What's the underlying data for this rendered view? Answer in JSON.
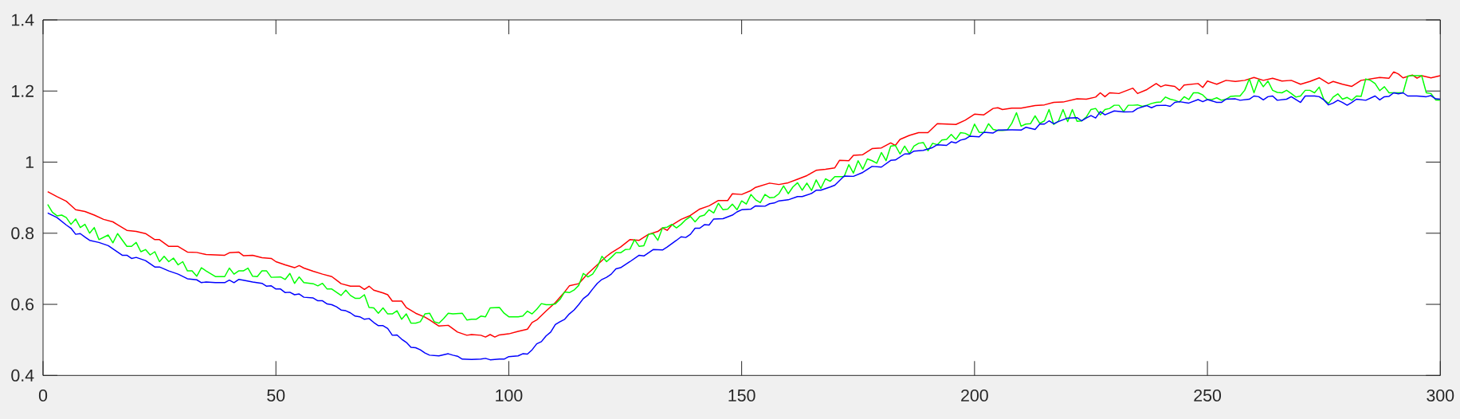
{
  "chart_data": {
    "type": "line",
    "xlim": [
      0,
      300
    ],
    "ylim": [
      0.4,
      1.4
    ],
    "xticks": [
      0,
      50,
      100,
      150,
      200,
      250,
      300
    ],
    "yticks": [
      0.4,
      0.6,
      0.8,
      1,
      1.2,
      1.4
    ],
    "series": [
      {
        "color": "#ff0000",
        "x": [
          1,
          3,
          5,
          7,
          9,
          11,
          13,
          15,
          16,
          18,
          20,
          22,
          24,
          25,
          27,
          29,
          31,
          33,
          35,
          37,
          39,
          40,
          42,
          43,
          45,
          47,
          49,
          50,
          52,
          54,
          55,
          56,
          58,
          60,
          62,
          63,
          64,
          66,
          68,
          69,
          70,
          71,
          73,
          74,
          75,
          77,
          78,
          80,
          82,
          83,
          85,
          87,
          89,
          91,
          92,
          94,
          95,
          96,
          97,
          98,
          100,
          102,
          104,
          105,
          106,
          108,
          110,
          112,
          113,
          115,
          117,
          119,
          121,
          122,
          124,
          126,
          128,
          130,
          132,
          133,
          134,
          135,
          137,
          139,
          141,
          143,
          145,
          147,
          148,
          150,
          152,
          153,
          156,
          158,
          160,
          162,
          164,
          166,
          168,
          170,
          171,
          173,
          174,
          176,
          178,
          180,
          182,
          183,
          184,
          186,
          188,
          190,
          192,
          194,
          196,
          198,
          200,
          202,
          204,
          205,
          206,
          208,
          210,
          213,
          215,
          217,
          219,
          221,
          222,
          224,
          226,
          227,
          228,
          229,
          231,
          234,
          235,
          237,
          239,
          240,
          241,
          243,
          244,
          245,
          248,
          249,
          250,
          252,
          254,
          256,
          258,
          260,
          262,
          264,
          266,
          268,
          270,
          272,
          274,
          276,
          277,
          279,
          281,
          283,
          285,
          287,
          289,
          290,
          291,
          292,
          294,
          295,
          296,
          298,
          300
        ],
        "values": [
          0.917,
          0.903,
          0.89,
          0.866,
          0.861,
          0.851,
          0.839,
          0.832,
          0.824,
          0.808,
          0.805,
          0.799,
          0.782,
          0.782,
          0.763,
          0.763,
          0.747,
          0.746,
          0.74,
          0.739,
          0.738,
          0.745,
          0.747,
          0.737,
          0.738,
          0.731,
          0.729,
          0.72,
          0.711,
          0.703,
          0.709,
          0.702,
          0.693,
          0.685,
          0.678,
          0.668,
          0.658,
          0.651,
          0.651,
          0.642,
          0.651,
          0.64,
          0.632,
          0.627,
          0.609,
          0.609,
          0.591,
          0.575,
          0.564,
          0.556,
          0.539,
          0.541,
          0.522,
          0.513,
          0.515,
          0.513,
          0.508,
          0.515,
          0.508,
          0.514,
          0.517,
          0.524,
          0.53,
          0.549,
          0.556,
          0.581,
          0.605,
          0.635,
          0.652,
          0.658,
          0.687,
          0.711,
          0.735,
          0.745,
          0.761,
          0.782,
          0.78,
          0.797,
          0.805,
          0.815,
          0.808,
          0.823,
          0.839,
          0.85,
          0.868,
          0.877,
          0.892,
          0.892,
          0.911,
          0.909,
          0.92,
          0.929,
          0.941,
          0.937,
          0.942,
          0.952,
          0.962,
          0.977,
          0.98,
          0.984,
          1.005,
          1.004,
          1.019,
          1.021,
          1.038,
          1.04,
          1.054,
          1.047,
          1.064,
          1.075,
          1.083,
          1.083,
          1.108,
          1.107,
          1.106,
          1.118,
          1.135,
          1.133,
          1.151,
          1.153,
          1.148,
          1.152,
          1.152,
          1.159,
          1.161,
          1.168,
          1.169,
          1.175,
          1.178,
          1.177,
          1.183,
          1.195,
          1.184,
          1.195,
          1.193,
          1.208,
          1.193,
          1.204,
          1.221,
          1.212,
          1.217,
          1.213,
          1.202,
          1.217,
          1.221,
          1.21,
          1.228,
          1.219,
          1.23,
          1.227,
          1.23,
          1.238,
          1.23,
          1.236,
          1.228,
          1.23,
          1.219,
          1.227,
          1.237,
          1.221,
          1.227,
          1.219,
          1.213,
          1.23,
          1.234,
          1.238,
          1.236,
          1.254,
          1.248,
          1.237,
          1.245,
          1.236,
          1.243,
          1.237,
          1.243
        ]
      },
      {
        "color": "#00ff00",
        "x": [
          1,
          2,
          3,
          4,
          5,
          6,
          7,
          8,
          9,
          10,
          11,
          12,
          14,
          15,
          16,
          18,
          19,
          20,
          21,
          22,
          23,
          24,
          25,
          26,
          27,
          28,
          29,
          30,
          31,
          32,
          33,
          34,
          35,
          37,
          39,
          40,
          41,
          42,
          43,
          44,
          45,
          46,
          47,
          48,
          49,
          51,
          52,
          53,
          54,
          55,
          56,
          58,
          59,
          60,
          61,
          62,
          64,
          65,
          66,
          67,
          68,
          69,
          70,
          71,
          72,
          73,
          74,
          75,
          76,
          77,
          78,
          79,
          80,
          81,
          82,
          83,
          84,
          85,
          86,
          87,
          88,
          90,
          91,
          92,
          93,
          94,
          95,
          96,
          98,
          99,
          100,
          102,
          103,
          104,
          105,
          106,
          107,
          108,
          109,
          110,
          111,
          112,
          113,
          114,
          115,
          116,
          117,
          118,
          119,
          120,
          121,
          122,
          123,
          124,
          125,
          126,
          127,
          128,
          129,
          130,
          131,
          132,
          133,
          134,
          135,
          136,
          137,
          138,
          139,
          140,
          141,
          142,
          143,
          144,
          145,
          146,
          147,
          148,
          149,
          150,
          151,
          152,
          153,
          154,
          155,
          156,
          157,
          158,
          159,
          160,
          161,
          162,
          163,
          164,
          165,
          166,
          167,
          168,
          169,
          170,
          172,
          173,
          174,
          175,
          176,
          177,
          178,
          179,
          180,
          181,
          182,
          183,
          184,
          185,
          186,
          187,
          188,
          189,
          190,
          191,
          192,
          193,
          194,
          195,
          196,
          197,
          198,
          199,
          200,
          201,
          202,
          203,
          204,
          205,
          206,
          207,
          208,
          209,
          210,
          211,
          212,
          213,
          214,
          215,
          216,
          217,
          218,
          219,
          220,
          221,
          222,
          223,
          224,
          225,
          226,
          227,
          228,
          229,
          230,
          231,
          232,
          233,
          234,
          235,
          236,
          237,
          238,
          239,
          240,
          241,
          242,
          243,
          244,
          245,
          246,
          247,
          248,
          249,
          250,
          251,
          252,
          253,
          254,
          255,
          256,
          257,
          258,
          259,
          260,
          261,
          262,
          263,
          264,
          265,
          266,
          267,
          268,
          269,
          270,
          271,
          272,
          273,
          274,
          275,
          276,
          277,
          278,
          279,
          280,
          281,
          282,
          283,
          284,
          285,
          286,
          287,
          288,
          289,
          290,
          291,
          292,
          293,
          294,
          295,
          296,
          297,
          298,
          299,
          300
        ],
        "values": [
          0.881,
          0.859,
          0.849,
          0.851,
          0.844,
          0.825,
          0.84,
          0.816,
          0.825,
          0.8,
          0.816,
          0.782,
          0.795,
          0.773,
          0.799,
          0.763,
          0.763,
          0.774,
          0.748,
          0.754,
          0.739,
          0.748,
          0.72,
          0.735,
          0.72,
          0.73,
          0.711,
          0.72,
          0.694,
          0.694,
          0.679,
          0.703,
          0.694,
          0.678,
          0.678,
          0.702,
          0.685,
          0.694,
          0.694,
          0.702,
          0.679,
          0.678,
          0.694,
          0.694,
          0.676,
          0.677,
          0.67,
          0.687,
          0.659,
          0.677,
          0.661,
          0.658,
          0.652,
          0.659,
          0.643,
          0.643,
          0.625,
          0.64,
          0.625,
          0.617,
          0.617,
          0.627,
          0.591,
          0.59,
          0.575,
          0.59,
          0.573,
          0.573,
          0.582,
          0.558,
          0.573,
          0.547,
          0.547,
          0.551,
          0.573,
          0.575,
          0.551,
          0.547,
          0.56,
          0.575,
          0.573,
          0.575,
          0.556,
          0.558,
          0.558,
          0.567,
          0.565,
          0.59,
          0.591,
          0.575,
          0.565,
          0.565,
          0.567,
          0.581,
          0.573,
          0.586,
          0.602,
          0.599,
          0.599,
          0.601,
          0.614,
          0.635,
          0.633,
          0.64,
          0.653,
          0.687,
          0.677,
          0.685,
          0.705,
          0.735,
          0.72,
          0.732,
          0.745,
          0.745,
          0.754,
          0.755,
          0.782,
          0.763,
          0.765,
          0.797,
          0.799,
          0.78,
          0.815,
          0.817,
          0.825,
          0.815,
          0.825,
          0.838,
          0.847,
          0.832,
          0.847,
          0.851,
          0.866,
          0.857,
          0.884,
          0.866,
          0.868,
          0.882,
          0.866,
          0.891,
          0.882,
          0.909,
          0.894,
          0.886,
          0.909,
          0.9,
          0.901,
          0.911,
          0.933,
          0.911,
          0.93,
          0.942,
          0.921,
          0.941,
          0.92,
          0.95,
          0.926,
          0.953,
          0.946,
          0.959,
          0.959,
          0.993,
          0.969,
          1.004,
          0.98,
          1.009,
          1.004,
          0.997,
          1.027,
          1.004,
          1.045,
          1.047,
          1.023,
          1.045,
          1.024,
          1.045,
          1.053,
          1.055,
          1.032,
          1.053,
          1.049,
          1.062,
          1.064,
          1.078,
          1.064,
          1.083,
          1.081,
          1.074,
          1.107,
          1.084,
          1.083,
          1.108,
          1.092,
          1.089,
          1.089,
          1.09,
          1.109,
          1.139,
          1.101,
          1.107,
          1.108,
          1.13,
          1.109,
          1.116,
          1.148,
          1.106,
          1.115,
          1.148,
          1.114,
          1.148,
          1.115,
          1.116,
          1.127,
          1.148,
          1.151,
          1.133,
          1.148,
          1.151,
          1.16,
          1.16,
          1.142,
          1.16,
          1.16,
          1.161,
          1.157,
          1.16,
          1.165,
          1.168,
          1.169,
          1.183,
          1.177,
          1.174,
          1.169,
          1.184,
          1.176,
          1.195,
          1.195,
          1.189,
          1.176,
          1.176,
          1.181,
          1.174,
          1.177,
          1.185,
          1.186,
          1.186,
          1.202,
          1.234,
          1.195,
          1.232,
          1.212,
          1.228,
          1.202,
          1.196,
          1.195,
          1.202,
          1.193,
          1.183,
          1.186,
          1.202,
          1.202,
          1.195,
          1.211,
          1.176,
          1.165,
          1.183,
          1.192,
          1.177,
          1.182,
          1.174,
          1.186,
          1.185,
          1.234,
          1.23,
          1.221,
          1.201,
          1.212,
          1.195,
          1.195,
          1.195,
          1.195,
          1.242,
          1.243,
          1.243,
          1.243,
          1.195,
          1.193,
          1.175,
          1.174
        ]
      },
      {
        "color": "#0000ff",
        "x": [
          1,
          3,
          5,
          6,
          7,
          8,
          9,
          10,
          12,
          14,
          16,
          17,
          18,
          19,
          20,
          22,
          24,
          25,
          27,
          29,
          31,
          33,
          34,
          35,
          37,
          39,
          40,
          41,
          42,
          43,
          45,
          47,
          48,
          49,
          50,
          51,
          52,
          53,
          54,
          55,
          56,
          58,
          59,
          60,
          61,
          62,
          63,
          64,
          65,
          66,
          67,
          68,
          69,
          70,
          71,
          72,
          73,
          74,
          75,
          76,
          77,
          78,
          79,
          80,
          81,
          82,
          83,
          85,
          87,
          88,
          89,
          90,
          92,
          94,
          95,
          96,
          98,
          99,
          100,
          102,
          103,
          104,
          105,
          106,
          107,
          108,
          109,
          110,
          111,
          112,
          113,
          114,
          115,
          116,
          117,
          118,
          119,
          120,
          121,
          122,
          123,
          124,
          126,
          128,
          129,
          130,
          131,
          133,
          134,
          136,
          137,
          138,
          139,
          140,
          141,
          142,
          143,
          144,
          146,
          148,
          149,
          150,
          152,
          153,
          155,
          156,
          157,
          158,
          160,
          162,
          163,
          165,
          166,
          167,
          169,
          170,
          171,
          172,
          174,
          176,
          178,
          180,
          182,
          183,
          185,
          186,
          187,
          189,
          191,
          192,
          194,
          195,
          196,
          197,
          198,
          199,
          201,
          202,
          204,
          205,
          208,
          210,
          211,
          213,
          214,
          215,
          216,
          217,
          218,
          220,
          222,
          223,
          224,
          225,
          226,
          227,
          228,
          230,
          232,
          234,
          235,
          237,
          238,
          239,
          241,
          242,
          243,
          244,
          246,
          248,
          249,
          250,
          251,
          252,
          253,
          254,
          256,
          257,
          259,
          260,
          261,
          262,
          263,
          264,
          265,
          267,
          268,
          269,
          270,
          271,
          273,
          274,
          275,
          276,
          277,
          278,
          279,
          280,
          281,
          282,
          284,
          286,
          287,
          288,
          289,
          290,
          291,
          292,
          293,
          295,
          297,
          298,
          299,
          300
        ],
        "values": [
          0.857,
          0.844,
          0.823,
          0.814,
          0.797,
          0.799,
          0.789,
          0.78,
          0.774,
          0.765,
          0.747,
          0.738,
          0.738,
          0.729,
          0.732,
          0.723,
          0.705,
          0.705,
          0.694,
          0.685,
          0.672,
          0.669,
          0.661,
          0.663,
          0.661,
          0.661,
          0.668,
          0.661,
          0.67,
          0.668,
          0.663,
          0.659,
          0.651,
          0.652,
          0.643,
          0.643,
          0.633,
          0.634,
          0.627,
          0.629,
          0.62,
          0.618,
          0.61,
          0.61,
          0.601,
          0.599,
          0.593,
          0.584,
          0.582,
          0.576,
          0.567,
          0.565,
          0.558,
          0.56,
          0.549,
          0.54,
          0.54,
          0.532,
          0.513,
          0.514,
          0.502,
          0.493,
          0.479,
          0.478,
          0.472,
          0.463,
          0.457,
          0.455,
          0.461,
          0.457,
          0.454,
          0.446,
          0.445,
          0.446,
          0.448,
          0.444,
          0.446,
          0.446,
          0.453,
          0.455,
          0.461,
          0.46,
          0.472,
          0.489,
          0.495,
          0.511,
          0.522,
          0.543,
          0.551,
          0.558,
          0.573,
          0.584,
          0.599,
          0.616,
          0.626,
          0.643,
          0.659,
          0.67,
          0.676,
          0.685,
          0.7,
          0.703,
          0.72,
          0.738,
          0.736,
          0.745,
          0.754,
          0.753,
          0.761,
          0.78,
          0.79,
          0.788,
          0.797,
          0.814,
          0.814,
          0.824,
          0.823,
          0.84,
          0.841,
          0.851,
          0.86,
          0.866,
          0.868,
          0.877,
          0.876,
          0.883,
          0.885,
          0.891,
          0.894,
          0.903,
          0.903,
          0.912,
          0.921,
          0.921,
          0.93,
          0.935,
          0.948,
          0.961,
          0.96,
          0.971,
          0.988,
          0.986,
          1.005,
          1.006,
          1.023,
          1.023,
          1.031,
          1.033,
          1.041,
          1.049,
          1.047,
          1.057,
          1.054,
          1.062,
          1.065,
          1.073,
          1.071,
          1.084,
          1.082,
          1.09,
          1.091,
          1.09,
          1.098,
          1.092,
          1.107,
          1.107,
          1.116,
          1.108,
          1.114,
          1.124,
          1.125,
          1.116,
          1.124,
          1.131,
          1.124,
          1.142,
          1.133,
          1.144,
          1.141,
          1.142,
          1.151,
          1.159,
          1.153,
          1.159,
          1.16,
          1.157,
          1.168,
          1.17,
          1.166,
          1.176,
          1.17,
          1.176,
          1.172,
          1.168,
          1.168,
          1.177,
          1.178,
          1.174,
          1.177,
          1.186,
          1.184,
          1.175,
          1.184,
          1.186,
          1.174,
          1.177,
          1.184,
          1.176,
          1.168,
          1.186,
          1.186,
          1.184,
          1.175,
          1.161,
          1.166,
          1.174,
          1.168,
          1.16,
          1.168,
          1.177,
          1.174,
          1.186,
          1.175,
          1.184,
          1.185,
          1.195,
          1.192,
          1.195,
          1.186,
          1.186,
          1.184,
          1.187,
          1.178,
          1.177
        ]
      }
    ]
  }
}
